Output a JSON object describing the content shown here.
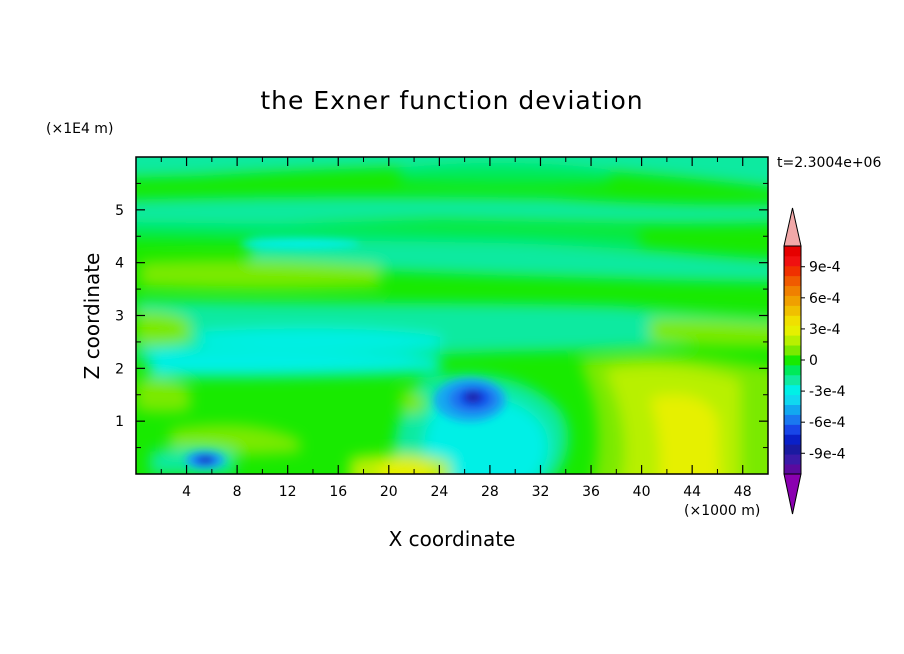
{
  "chart_data": {
    "type": "heatmap",
    "title": "the Exner function deviation",
    "xlabel": "X coordinate",
    "ylabel": "Z coordinate",
    "x_unit": "(×1000 m)",
    "y_unit": "(×1E4 m)",
    "time_label": "t=2.3004e+06",
    "xlim": [
      0,
      50
    ],
    "ylim": [
      0,
      6
    ],
    "x_ticks": [
      4,
      8,
      12,
      16,
      20,
      24,
      28,
      32,
      36,
      40,
      44,
      48
    ],
    "y_ticks": [
      1,
      2,
      3,
      4,
      5
    ],
    "colorbar": {
      "labels": [
        "9e-4",
        "6e-4",
        "3e-4",
        "0",
        "-3e-4",
        "-6e-4",
        "-9e-4"
      ],
      "label_values": [
        0.0009,
        0.0006,
        0.0003,
        0,
        -0.0003,
        -0.0006,
        -0.0009
      ],
      "levels": [
        -0.0011,
        -0.001,
        -0.0009,
        -0.0008,
        -0.0007,
        -0.0006,
        -0.0005,
        -0.0004,
        -0.0003,
        -0.0002,
        -0.0001,
        0,
        0.0001,
        0.0002,
        0.0003,
        0.0004,
        0.0005,
        0.0006,
        0.0007,
        0.0008,
        0.0009,
        0.001,
        0.0011
      ],
      "colors": [
        "#5a0a9e",
        "#3a1aa8",
        "#1a1aa0",
        "#0a20c8",
        "#1846e8",
        "#1a78f0",
        "#12a8f0",
        "#10d8f0",
        "#00f0e6",
        "#10eaa0",
        "#00ea5a",
        "#18ea00",
        "#7aea00",
        "#b8f000",
        "#e6f000",
        "#f0e000",
        "#f0c000",
        "#f0a000",
        "#f08000",
        "#f05a00",
        "#f03000",
        "#f01010",
        "#e60000"
      ],
      "over_color": "#f2a8a8",
      "under_color": "#8a00b0"
    },
    "features": [
      {
        "x": 26,
        "y": 1.42,
        "value": -0.0008
      },
      {
        "x": 5.8,
        "y": 0.25,
        "value": -0.0006
      },
      {
        "x": 43.5,
        "y": 0.6,
        "value": 0.0005
      },
      {
        "x": 27,
        "y": 0.85,
        "value": -0.0003
      },
      {
        "x": 20.5,
        "y": 0.12,
        "value": 0.0004
      }
    ]
  }
}
